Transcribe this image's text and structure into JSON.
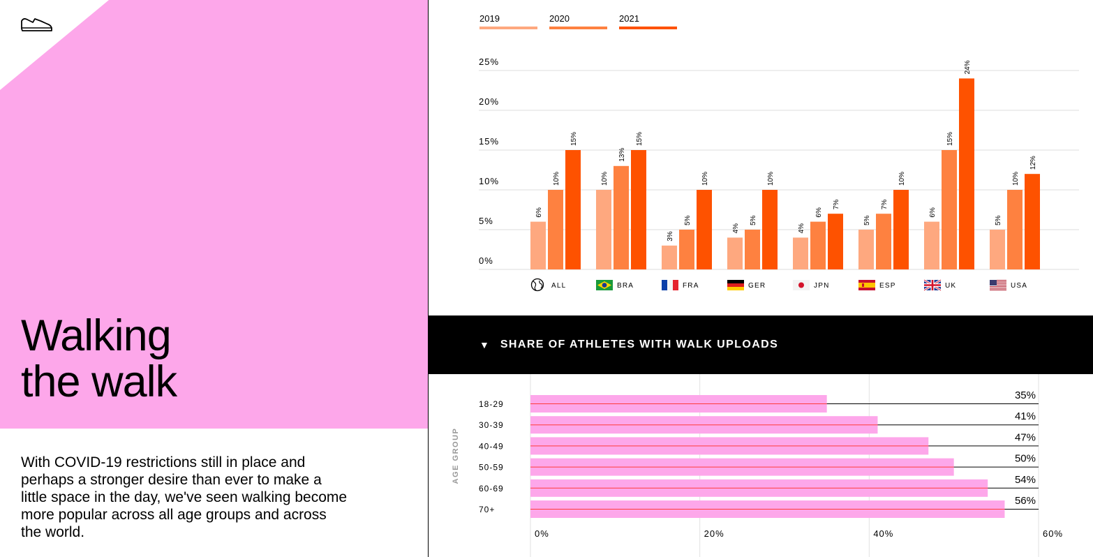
{
  "title_lines": [
    "Walking",
    "the walk"
  ],
  "intro": "With COVID-19 restrictions still in place and perhaps a stronger desire than ever to make a little space in the day, we've seen walking become more popular across all age groups and across the world.",
  "colors": {
    "pink": "#fda7ea",
    "2019": "#fea87f",
    "2020": "#fe8140",
    "2021": "#fe5200",
    "bar_line": "#ff3b3b"
  },
  "icons": {
    "logo": "shoe-icon",
    "section_toggle": "triangle-down-icon"
  },
  "section": {
    "caret": "▼",
    "label": "SHARE OF ATHLETES WITH WALK UPLOADS"
  },
  "chart_data": [
    {
      "type": "bar",
      "legend": [
        "2019",
        "2020",
        "2021"
      ],
      "legend_placement": "top-left",
      "categories": [
        "ALL",
        "BRA",
        "FRA",
        "GER",
        "JPN",
        "ESP",
        "UK",
        "USA"
      ],
      "category_icons": [
        "globe-icon",
        "flag-bra-icon",
        "flag-fra-icon",
        "flag-ger-icon",
        "flag-jpn-icon",
        "flag-esp-icon",
        "flag-uk-icon",
        "flag-usa-icon"
      ],
      "series": [
        {
          "name": "2019",
          "values": [
            6,
            10,
            3,
            4,
            4,
            5,
            6,
            5
          ]
        },
        {
          "name": "2020",
          "values": [
            10,
            13,
            5,
            5,
            6,
            7,
            15,
            10
          ]
        },
        {
          "name": "2021",
          "values": [
            15,
            15,
            10,
            10,
            7,
            10,
            24,
            12
          ]
        }
      ],
      "y_ticks": [
        "0%",
        "5%",
        "10%",
        "15%",
        "20%",
        "25%"
      ],
      "ylim": [
        0,
        25
      ],
      "value_suffix": "%",
      "grid": true
    },
    {
      "type": "bar",
      "orientation": "horizontal",
      "ylabel": "AGE GROUP",
      "categories": [
        "18-29",
        "30-39",
        "40-49",
        "50-59",
        "60-69",
        "70+"
      ],
      "values": [
        35,
        41,
        47,
        50,
        54,
        56
      ],
      "value_labels": [
        "35%",
        "41%",
        "47%",
        "50%",
        "54%",
        "56%"
      ],
      "x_ticks": [
        "0%",
        "20%",
        "40%",
        "60%"
      ],
      "xlim": [
        0,
        60
      ],
      "grid": true
    }
  ]
}
